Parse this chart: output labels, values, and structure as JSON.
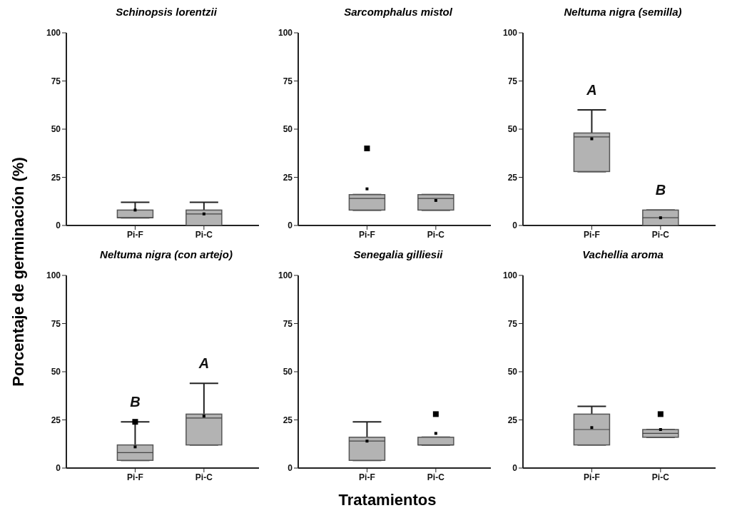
{
  "chart_data": [
    {
      "type": "box",
      "title": "Schinopsis lorentzii",
      "ylabel": "Porcentaje de germinación (%)",
      "categories": [
        "Pi-F",
        "Pi-C"
      ],
      "color": "#b3b3b3",
      "ylim": [
        0,
        100
      ],
      "yticks": [
        0,
        25,
        50,
        75,
        100
      ],
      "boxes": [
        {
          "low": 4,
          "q1": 4,
          "median": 4,
          "q3": 8,
          "high": 12,
          "mean": 8
        },
        {
          "low": 0,
          "q1": 0,
          "median": 6,
          "q3": 8,
          "high": 12,
          "mean": 6
        }
      ]
    },
    {
      "type": "box",
      "title": "Sarcomphalus mistol",
      "categories": [
        "Pi-F",
        "Pi-C"
      ],
      "color": "#b3b3b3",
      "ylim": [
        0,
        100
      ],
      "yticks": [
        0,
        25,
        50,
        75,
        100
      ],
      "boxes": [
        {
          "low": 8,
          "q1": 8,
          "median": 14,
          "q3": 16,
          "high": 16,
          "mean": 19,
          "outliers": [
            40
          ]
        },
        {
          "low": 8,
          "q1": 8,
          "median": 14,
          "q3": 16,
          "high": 16,
          "mean": 13
        }
      ]
    },
    {
      "type": "box",
      "title": "Neltuma nigra (semilla)",
      "categories": [
        "Pi-F",
        "Pi-C"
      ],
      "color": "#b3b3b3",
      "ylim": [
        0,
        100
      ],
      "yticks": [
        0,
        25,
        50,
        75,
        100
      ],
      "boxes": [
        {
          "low": 28,
          "q1": 28,
          "median": 46,
          "q3": 48,
          "high": 60,
          "mean": 45
        },
        {
          "low": 0,
          "q1": 0,
          "median": 4,
          "q3": 8,
          "high": 8,
          "mean": 4
        }
      ],
      "annotations": [
        "A",
        "B"
      ]
    },
    {
      "type": "box",
      "title": "Neltuma nigra (con artejo)",
      "categories": [
        "Pi-F",
        "Pi-C"
      ],
      "color": "#b3b3b3",
      "ylim": [
        0,
        100
      ],
      "yticks": [
        0,
        25,
        50,
        75,
        100
      ],
      "boxes": [
        {
          "low": 4,
          "q1": 4,
          "median": 8,
          "q3": 12,
          "high": 24,
          "mean": 11,
          "outliers": [
            24
          ]
        },
        {
          "low": 12,
          "q1": 12,
          "median": 26,
          "q3": 28,
          "high": 44,
          "mean": 27
        }
      ],
      "annotations": [
        "B",
        "A"
      ]
    },
    {
      "type": "box",
      "title": "Senegalia gilliesii",
      "xlabel": "Tratamientos",
      "categories": [
        "Pi-F",
        "Pi-C"
      ],
      "color": "#b3b3b3",
      "ylim": [
        0,
        100
      ],
      "yticks": [
        0,
        25,
        50,
        75,
        100
      ],
      "boxes": [
        {
          "low": 4,
          "q1": 4,
          "median": 14,
          "q3": 16,
          "high": 24,
          "mean": 14
        },
        {
          "low": 12,
          "q1": 12,
          "median": 12,
          "q3": 16,
          "high": 16,
          "mean": 18,
          "outliers": [
            28
          ]
        }
      ]
    },
    {
      "type": "box",
      "title": "Vachellia aroma",
      "categories": [
        "Pi-F",
        "Pi-C"
      ],
      "color": "#b3b3b3",
      "ylim": [
        0,
        100
      ],
      "yticks": [
        0,
        25,
        50,
        75,
        100
      ],
      "boxes": [
        {
          "low": 12,
          "q1": 12,
          "median": 20,
          "q3": 28,
          "high": 32,
          "mean": 21
        },
        {
          "low": 16,
          "q1": 16,
          "median": 18,
          "q3": 20,
          "high": 20,
          "mean": 20,
          "outliers": [
            28
          ]
        }
      ]
    }
  ]
}
